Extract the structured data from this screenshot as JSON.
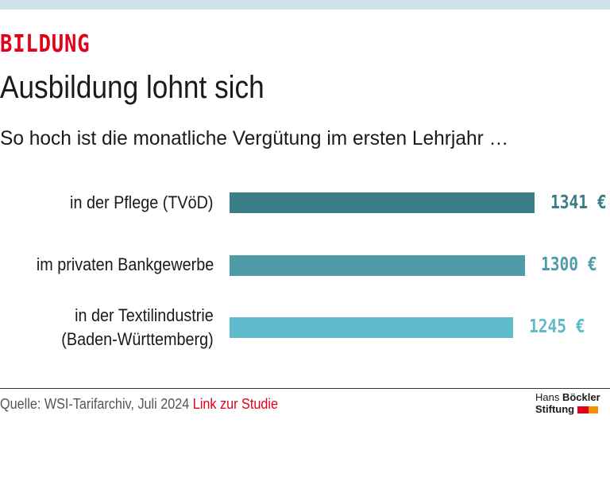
{
  "header": {
    "kicker": "BILDUNG",
    "title": "Ausbildung lohnt sich",
    "subtitle": "So hoch ist die monatliche Vergütung im ersten Lehrjahr …"
  },
  "chart_data": {
    "type": "bar",
    "orientation": "horizontal",
    "categories": [
      "in der Pflege (TVöD)",
      "im privaten Bankgewerbe",
      "in der Textilindustrie (Baden-Württemberg)"
    ],
    "category_lines": [
      [
        "in der Pflege (TVöD)"
      ],
      [
        "im privaten Bankgewerbe"
      ],
      [
        "in der Textilindustrie",
        "(Baden-Württemberg)"
      ]
    ],
    "values": [
      1341,
      1300,
      1245
    ],
    "value_labels": [
      "1341 €",
      "1300 €",
      "1245 €"
    ],
    "colors": [
      "#3b7d87",
      "#4e9ca8",
      "#5fbacb"
    ],
    "xlim": [
      0,
      1341
    ],
    "grid": false
  },
  "footer": {
    "source": "Quelle: WSI-Tarifarchiv, Juli 2024",
    "link": "Link zur Studie"
  },
  "logo": {
    "line1a": "Hans ",
    "line1b": "Böckler",
    "line2": "Stiftung",
    "colors": [
      "#e2001a",
      "#f39200"
    ]
  }
}
